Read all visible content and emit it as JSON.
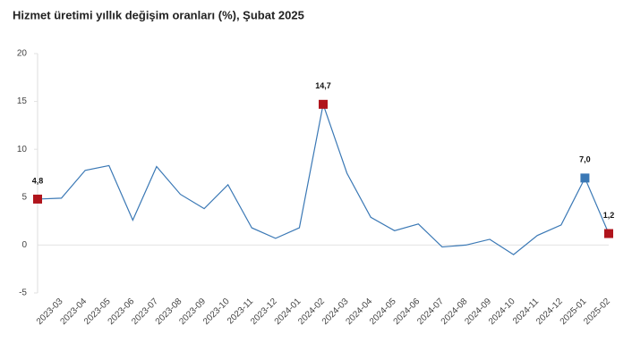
{
  "chart_data": {
    "type": "line",
    "title": "Hizmet üretimi yıllık değişim oranları (%), Şubat 2025",
    "categories": [
      null,
      "2023-03",
      "2023-04",
      "2023-05",
      "2023-06",
      "2023-07",
      "2023-08",
      "2023-09",
      "2023-10",
      "2023-11",
      "2023-12",
      "2024-01",
      "2024-02",
      "2024-03",
      "2024-04",
      "2024-05",
      "2024-06",
      "2024-07",
      "2024-08",
      "2024-09",
      "2024-10",
      "2024-11",
      "2024-12",
      "2025-01",
      "2025-02"
    ],
    "series": [
      {
        "color": "#3a78b5",
        "values": [
          4.8,
          4.9,
          7.8,
          8.3,
          2.6,
          8.2,
          5.3,
          3.8,
          6.3,
          1.8,
          0.7,
          1.8,
          14.7,
          7.5,
          2.9,
          1.5,
          2.2,
          -0.2,
          0.0,
          0.6,
          -1.0,
          1.0,
          2.1,
          7.0,
          1.2
        ],
        "value_labels": [
          "4,8",
          null,
          null,
          null,
          null,
          null,
          null,
          null,
          null,
          null,
          null,
          null,
          "14,7",
          null,
          null,
          null,
          null,
          null,
          null,
          null,
          null,
          null,
          null,
          "7,0",
          "1,2"
        ],
        "marker_colors": [
          "#b0141c",
          null,
          null,
          null,
          null,
          null,
          null,
          null,
          null,
          null,
          null,
          null,
          "#b0141c",
          null,
          null,
          null,
          null,
          null,
          null,
          null,
          null,
          null,
          null,
          "#3a78b5",
          "#b0141c"
        ]
      }
    ],
    "ylim": [
      -5,
      20
    ],
    "yticks": [
      -5,
      0,
      5,
      10,
      15,
      20
    ]
  }
}
